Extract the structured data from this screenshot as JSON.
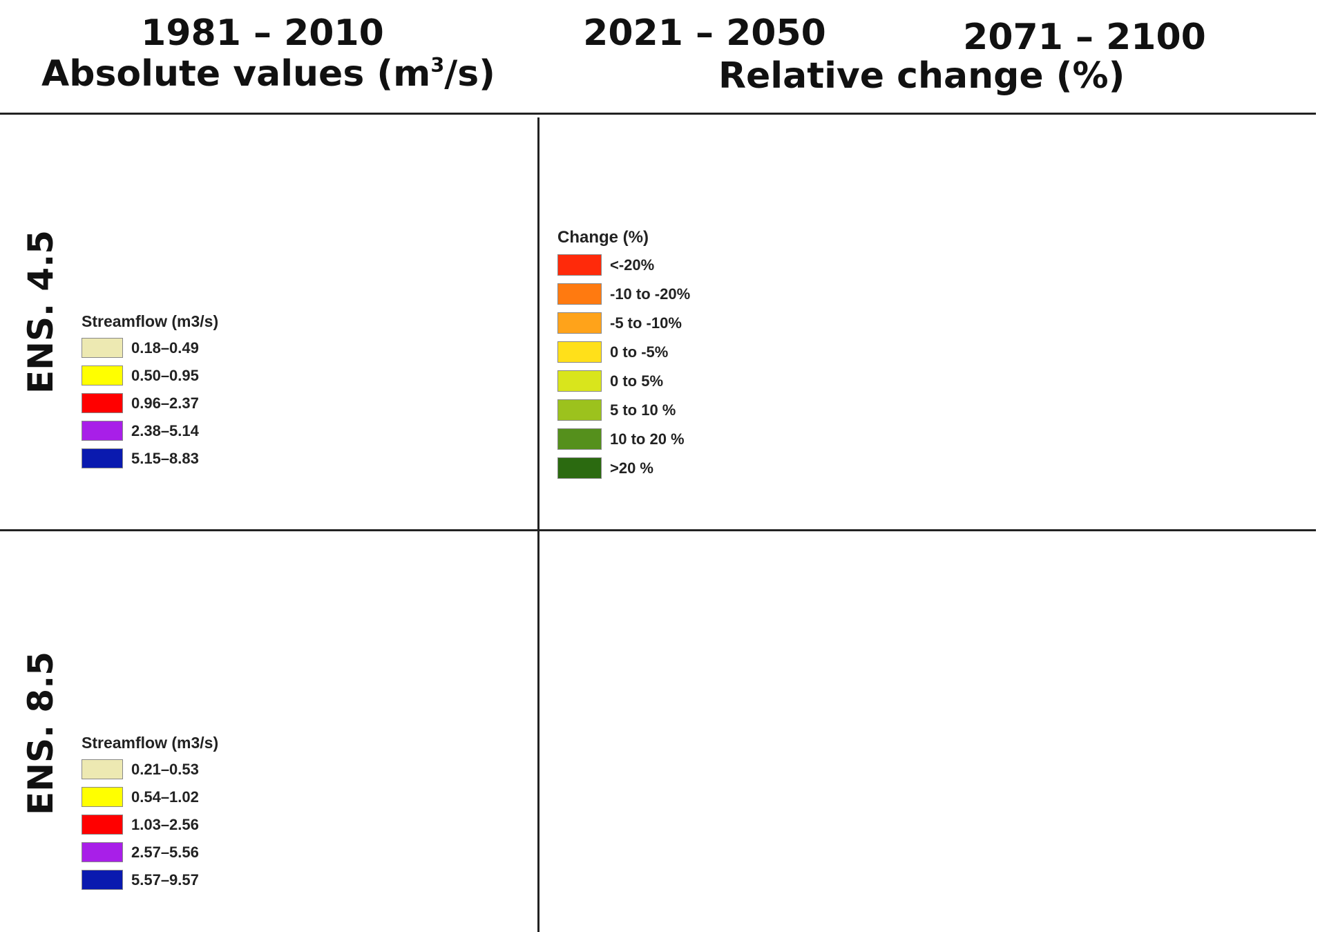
{
  "colors": {
    "streamflow_class_1": "#ede9b2",
    "streamflow_class_2": "#ffff00",
    "streamflow_class_3": "#ff0000",
    "streamflow_class_4": "#a81fe8",
    "streamflow_class_5": "#0a1aaf",
    "change_lt_m20": "#ff2a0a",
    "change_m10_m20": "#ff7a10",
    "change_m5_m10": "#ffa31a",
    "change_0_m5": "#ffe01a",
    "change_0_5": "#d9e51c",
    "change_5_10": "#9cc21d",
    "change_10_20": "#55901c",
    "change_gt_20": "#2b6a10"
  },
  "headers": {
    "baseline_period": "1981 – 2010",
    "baseline_subtitle": "Absolute values (m",
    "baseline_unit_exp": "3",
    "baseline_unit_tail": "/s)",
    "near_period": "2021 – 2050",
    "far_period": "2071 – 2100",
    "relative_subtitle": "Relative change (%)"
  },
  "rows": [
    {
      "label": "ENS. 4.5",
      "streamflow_legend": {
        "title": "Streamflow (m3/s)",
        "items": [
          {
            "label": "0.18–0.49",
            "color": "#ede9b2"
          },
          {
            "label": "0.50–0.95",
            "color": "#ffff00"
          },
          {
            "label": "0.96–2.37",
            "color": "#ff0000"
          },
          {
            "label": "2.38–5.14",
            "color": "#a81fe8"
          },
          {
            "label": "5.15–8.83",
            "color": "#0a1aaf"
          }
        ]
      }
    },
    {
      "label": "ENS. 8.5",
      "streamflow_legend": {
        "title": "Streamflow (m3/s)",
        "items": [
          {
            "label": "0.21–0.53",
            "color": "#ede9b2"
          },
          {
            "label": "0.54–1.02",
            "color": "#ffff00"
          },
          {
            "label": "1.03–2.56",
            "color": "#ff0000"
          },
          {
            "label": "2.57–5.56",
            "color": "#a81fe8"
          },
          {
            "label": "5.57–9.57",
            "color": "#0a1aaf"
          }
        ]
      }
    }
  ],
  "change_legend": {
    "title": "Change (%)",
    "items": [
      {
        "label": "<-20%",
        "color": "#ff2a0a"
      },
      {
        "label": "-10 to -20%",
        "color": "#ff7a10"
      },
      {
        "label": "-5 to -10%",
        "color": "#ffa31a"
      },
      {
        "label": "0 to -5%",
        "color": "#ffe01a"
      },
      {
        "label": "0 to 5%",
        "color": "#d9e51c"
      },
      {
        "label": "5 to 10 %",
        "color": "#9cc21d"
      },
      {
        "label": "10 to 20 %",
        "color": "#55901c"
      },
      {
        "label": ">20 %",
        "color": "#2b6a10"
      }
    ]
  },
  "maps": {
    "ens45_baseline": {
      "upper_left": "#ede9b2",
      "upper_right": "#ffff00",
      "red_core": "#ff0000",
      "mid_east": "#a81fe8",
      "outlet": "#0a1aaf",
      "south_west": "#ede9b2",
      "south_mid": "#ffff00",
      "south_east": "#ede9b2",
      "south_red": "#ff0000"
    },
    "ens45_near": {
      "upper_left": "#55901c",
      "upper_right": "#55901c",
      "red_core": "#55901c",
      "mid_east": "#55901c",
      "outlet": "#55901c",
      "south_west": "#2b6a10",
      "south_mid": "#55901c",
      "south_east": "#2b6a10",
      "south_red": "#55901c"
    },
    "ens45_far": {
      "upper_left": "#d9e51c",
      "upper_right": "#d9e51c",
      "red_core": "#d9e51c",
      "mid_east": "#d9e51c",
      "outlet": "#d9e51c",
      "south_west": "#ffe01a",
      "south_mid": "#d9e51c",
      "south_east": "#ffe01a",
      "south_red": "#ffe01a"
    },
    "ens85_baseline": {
      "upper_left": "#ede9b2",
      "upper_right": "#ffff00",
      "red_core": "#ff0000",
      "mid_east": "#a81fe8",
      "outlet": "#0a1aaf",
      "south_west": "#ede9b2",
      "south_mid": "#ffff00",
      "south_east": "#ede9b2",
      "south_red": "#ff0000"
    },
    "ens85_near": {
      "upper_left": "#d9e51c",
      "upper_right": "#d9e51c",
      "red_core": "#ffe01a",
      "mid_east": "#d9e51c",
      "outlet": "#ffe01a",
      "south_west": "#ff7a10",
      "south_mid": "#9cc21d",
      "south_east": "#ff7a10",
      "south_red": "#ffa31a"
    },
    "ens85_far": {
      "upper_left": "#d9e51c",
      "upper_right": "#d9e51c",
      "red_core": "#ffe01a",
      "mid_east": "#d9e51c",
      "outlet": "#ffe01a",
      "south_west": "#ffa31a",
      "south_mid": "#9cc21d",
      "south_east": "#ff7a10",
      "south_red": "#ffe01a"
    }
  }
}
